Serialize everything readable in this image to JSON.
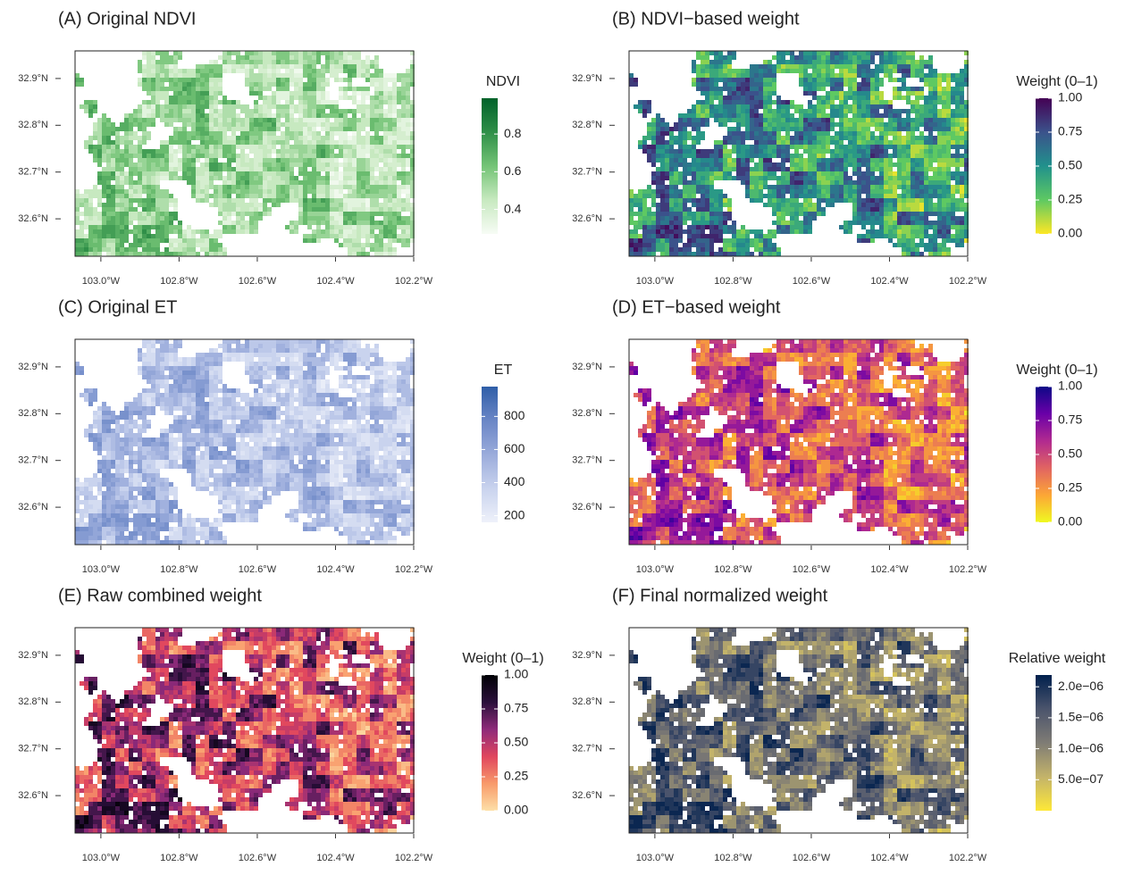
{
  "chart_data": [
    {
      "type": "raster-map",
      "title": "(A) Original NDVI",
      "xlim": [
        -103.066,
        -102.2
      ],
      "ylim": [
        32.52,
        32.959
      ],
      "xticks": [
        {
          "value": -103.0,
          "label": "103.0°W"
        },
        {
          "value": -102.8,
          "label": "102.8°W"
        },
        {
          "value": -102.6,
          "label": "102.6°W"
        },
        {
          "value": -102.4,
          "label": "102.4°W"
        },
        {
          "value": -102.2,
          "label": "102.2°W"
        }
      ],
      "yticks": [
        {
          "value": 32.6,
          "label": "32.6°N"
        },
        {
          "value": 32.7,
          "label": "32.7°N"
        },
        {
          "value": 32.8,
          "label": "32.8°N"
        },
        {
          "value": 32.9,
          "label": "32.9°N"
        }
      ],
      "legend": {
        "title": "NDVI",
        "range": [
          0.27,
          0.99
        ],
        "ticks": [
          0.4,
          0.6,
          0.8
        ],
        "colors": [
          "#f7fcf5",
          "#c7e9c0",
          "#74c476",
          "#2f8f48",
          "#00622a"
        ]
      }
    },
    {
      "type": "raster-map",
      "title": "(B) NDVI−based weight",
      "xlim": [
        -103.066,
        -102.2
      ],
      "ylim": [
        32.52,
        32.959
      ],
      "xticks": [
        {
          "value": -103.0,
          "label": "103.0°W"
        },
        {
          "value": -102.8,
          "label": "102.8°W"
        },
        {
          "value": -102.6,
          "label": "102.6°W"
        },
        {
          "value": -102.4,
          "label": "102.4°W"
        },
        {
          "value": -102.2,
          "label": "102.2°W"
        }
      ],
      "yticks": [
        {
          "value": 32.6,
          "label": "32.6°N"
        },
        {
          "value": 32.7,
          "label": "32.7°N"
        },
        {
          "value": 32.8,
          "label": "32.8°N"
        },
        {
          "value": 32.9,
          "label": "32.9°N"
        }
      ],
      "legend": {
        "title": "Weight (0–1)",
        "range": [
          0,
          1
        ],
        "ticks": [
          {
            "value": 0,
            "label": "0.00"
          },
          {
            "value": 0.25,
            "label": "0.25"
          },
          {
            "value": 0.5,
            "label": "0.50"
          },
          {
            "value": 0.75,
            "label": "0.75"
          },
          {
            "value": 1,
            "label": "1.00"
          }
        ],
        "colors": [
          "#fde725",
          "#5ec962",
          "#21918c",
          "#3b528b",
          "#440154"
        ]
      }
    },
    {
      "type": "raster-map",
      "title": "(C) Original ET",
      "xlim": [
        -103.066,
        -102.2
      ],
      "ylim": [
        32.52,
        32.959
      ],
      "xticks": [
        {
          "value": -103.0,
          "label": "103.0°W"
        },
        {
          "value": -102.8,
          "label": "102.8°W"
        },
        {
          "value": -102.6,
          "label": "102.6°W"
        },
        {
          "value": -102.4,
          "label": "102.4°W"
        },
        {
          "value": -102.2,
          "label": "102.2°W"
        }
      ],
      "yticks": [
        {
          "value": 32.6,
          "label": "32.6°N"
        },
        {
          "value": 32.7,
          "label": "32.7°N"
        },
        {
          "value": 32.8,
          "label": "32.8°N"
        },
        {
          "value": 32.9,
          "label": "32.9°N"
        }
      ],
      "legend": {
        "title": "ET",
        "range": [
          160,
          980
        ],
        "ticks": [
          200,
          400,
          600,
          800
        ],
        "colors": [
          "#eef1fa",
          "#c9d3ee",
          "#9aabdb",
          "#6a86c6",
          "#2f5ea8"
        ]
      }
    },
    {
      "type": "raster-map",
      "title": "(D) ET−based weight",
      "xlim": [
        -103.066,
        -102.2
      ],
      "ylim": [
        32.52,
        32.959
      ],
      "xticks": [
        {
          "value": -103.0,
          "label": "103.0°W"
        },
        {
          "value": -102.8,
          "label": "102.8°W"
        },
        {
          "value": -102.6,
          "label": "102.6°W"
        },
        {
          "value": -102.4,
          "label": "102.4°W"
        },
        {
          "value": -102.2,
          "label": "102.2°W"
        }
      ],
      "yticks": [
        {
          "value": 32.6,
          "label": "32.6°N"
        },
        {
          "value": 32.7,
          "label": "32.7°N"
        },
        {
          "value": 32.8,
          "label": "32.8°N"
        },
        {
          "value": 32.9,
          "label": "32.9°N"
        }
      ],
      "legend": {
        "title": "Weight (0–1)",
        "range": [
          0,
          1
        ],
        "ticks": [
          {
            "value": 0,
            "label": "0.00"
          },
          {
            "value": 0.25,
            "label": "0.25"
          },
          {
            "value": 0.5,
            "label": "0.50"
          },
          {
            "value": 0.75,
            "label": "0.75"
          },
          {
            "value": 1,
            "label": "1.00"
          }
        ],
        "colors": [
          "#f0f921",
          "#fca636",
          "#e16462",
          "#b12a90",
          "#6a00a8",
          "#0d0887"
        ]
      }
    },
    {
      "type": "raster-map",
      "title": "(E) Raw combined weight",
      "xlim": [
        -103.066,
        -102.2
      ],
      "ylim": [
        32.52,
        32.959
      ],
      "xticks": [
        {
          "value": -103.0,
          "label": "103.0°W"
        },
        {
          "value": -102.8,
          "label": "102.8°W"
        },
        {
          "value": -102.6,
          "label": "102.6°W"
        },
        {
          "value": -102.4,
          "label": "102.4°W"
        },
        {
          "value": -102.2,
          "label": "102.2°W"
        }
      ],
      "yticks": [
        {
          "value": 32.6,
          "label": "32.6°N"
        },
        {
          "value": 32.7,
          "label": "32.7°N"
        },
        {
          "value": 32.8,
          "label": "32.8°N"
        },
        {
          "value": 32.9,
          "label": "32.9°N"
        }
      ],
      "legend": {
        "title": "Weight (0–1)",
        "range": [
          0,
          1
        ],
        "ticks": [
          {
            "value": 0,
            "label": "0.00"
          },
          {
            "value": 0.25,
            "label": "0.25"
          },
          {
            "value": 0.5,
            "label": "0.50"
          },
          {
            "value": 0.75,
            "label": "0.75"
          },
          {
            "value": 1,
            "label": "1.00"
          }
        ],
        "colors": [
          "#fde0a8",
          "#f89a6a",
          "#e0455e",
          "#8e2a7a",
          "#2a0f3b",
          "#000004"
        ]
      }
    },
    {
      "type": "raster-map",
      "title": "(F) Final normalized weight",
      "xlim": [
        -103.066,
        -102.2
      ],
      "ylim": [
        32.52,
        32.959
      ],
      "xticks": [
        {
          "value": -103.0,
          "label": "103.0°W"
        },
        {
          "value": -102.8,
          "label": "102.8°W"
        },
        {
          "value": -102.6,
          "label": "102.6°W"
        },
        {
          "value": -102.4,
          "label": "102.4°W"
        },
        {
          "value": -102.2,
          "label": "102.2°W"
        }
      ],
      "yticks": [
        {
          "value": 32.6,
          "label": "32.6°N"
        },
        {
          "value": 32.7,
          "label": "32.7°N"
        },
        {
          "value": 32.8,
          "label": "32.8°N"
        },
        {
          "value": 32.9,
          "label": "32.9°N"
        }
      ],
      "legend": {
        "title": "Relative weight",
        "range": [
          0,
          2.19e-06
        ],
        "ticks": [
          {
            "value": 5e-07,
            "label": "5.0e−07"
          },
          {
            "value": 1e-06,
            "label": "1.0e−06"
          },
          {
            "value": 1.5e-06,
            "label": "1.5e−06"
          },
          {
            "value": 2e-06,
            "label": "2.0e−06"
          }
        ],
        "colors": [
          "#fee838",
          "#c3b36a",
          "#7f7c75",
          "#4b546c",
          "#00204d"
        ]
      }
    }
  ]
}
